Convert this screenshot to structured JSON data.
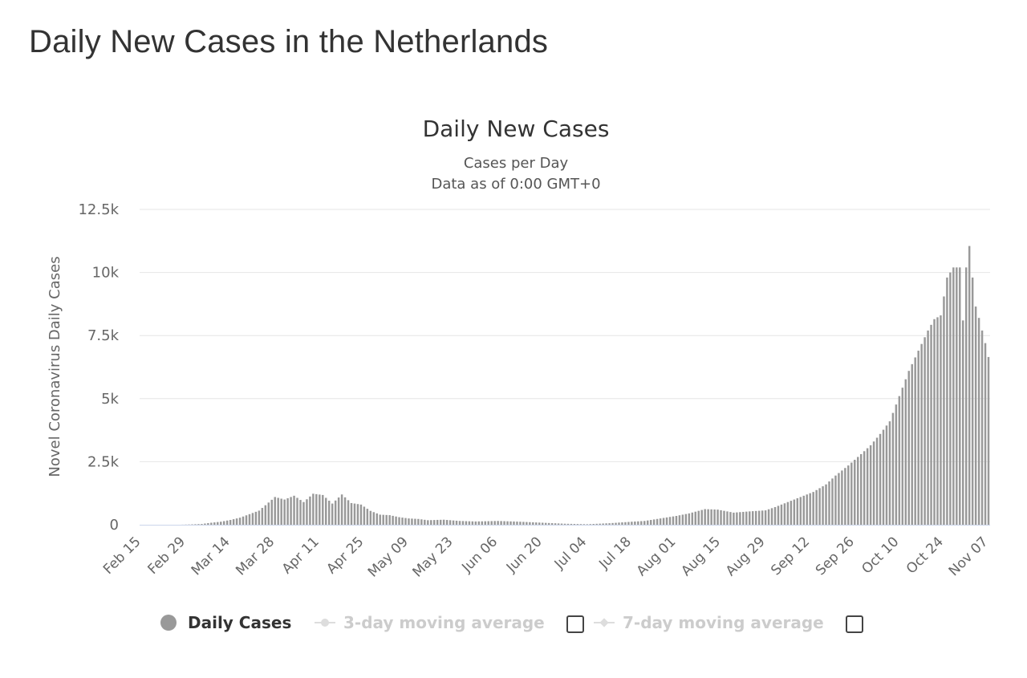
{
  "page": {
    "title": "Daily New Cases in the Netherlands"
  },
  "legend": {
    "daily_label": "Daily Cases",
    "avg3_label": "3-day moving average",
    "avg7_label": "7-day moving average",
    "avg3_checked": false,
    "avg7_checked": false
  },
  "colors": {
    "bar": "#999999",
    "grid": "#e6e6e6",
    "axis_line": "#ccd6eb",
    "axis_text": "#666666",
    "title": "#333333"
  },
  "chart_data": {
    "type": "bar",
    "title": "Daily New Cases",
    "subtitle_lines": [
      "Cases per Day",
      "Data as of 0:00 GMT+0"
    ],
    "ylabel": "Novel Coronavirus Daily Cases",
    "xlabel": "",
    "ylim": [
      0,
      12500
    ],
    "y_ticks": [
      0,
      2500,
      5000,
      7500,
      10000,
      12500
    ],
    "y_tick_labels": [
      "0",
      "2.5k",
      "5k",
      "7.5k",
      "10k",
      "12.5k"
    ],
    "x_range": [
      "Feb 15",
      "Nov 07"
    ],
    "x_ticks": [
      "Feb 15",
      "Feb 29",
      "Mar 14",
      "Mar 28",
      "Apr 11",
      "Apr 25",
      "May 09",
      "May 23",
      "Jun 06",
      "Jun 20",
      "Jul 04",
      "Jul 18",
      "Aug 01",
      "Aug 15",
      "Aug 29",
      "Sep 12",
      "Sep 26",
      "Oct 10",
      "Oct 24",
      "Nov 07"
    ],
    "grid": true,
    "legend_position": "bottom",
    "series": [
      {
        "name": "Daily Cases",
        "key_dates": [
          "Feb 15",
          "Feb 27",
          "Mar 01",
          "Mar 05",
          "Mar 08",
          "Mar 11",
          "Mar 14",
          "Mar 17",
          "Mar 20",
          "Mar 23",
          "Mar 26",
          "Mar 28",
          "Mar 31",
          "Apr 03",
          "Apr 06",
          "Apr 09",
          "Apr 12",
          "Apr 15",
          "Apr 18",
          "Apr 21",
          "Apr 24",
          "Apr 27",
          "Apr 30",
          "May 03",
          "May 06",
          "May 09",
          "May 12",
          "May 15",
          "May 20",
          "May 25",
          "May 30",
          "Jun 06",
          "Jun 13",
          "Jun 20",
          "Jun 27",
          "Jul 04",
          "Jul 11",
          "Jul 18",
          "Jul 22",
          "Jul 27",
          "Aug 01",
          "Aug 05",
          "Aug 10",
          "Aug 14",
          "Aug 19",
          "Aug 24",
          "Aug 29",
          "Sep 01",
          "Sep 05",
          "Sep 09",
          "Sep 13",
          "Sep 17",
          "Sep 20",
          "Sep 24",
          "Sep 28",
          "Oct 01",
          "Oct 04",
          "Oct 07",
          "Oct 10",
          "Oct 13",
          "Oct 16",
          "Oct 19",
          "Oct 21",
          "Oct 23",
          "Oct 25",
          "Oct 27",
          "Oct 29",
          "Oct 30",
          "Oct 31",
          "Nov 01",
          "Nov 02",
          "Nov 03",
          "Nov 04",
          "Nov 05",
          "Nov 06",
          "Nov 07"
        ],
        "key_values": [
          0,
          0,
          10,
          30,
          80,
          120,
          190,
          280,
          420,
          560,
          880,
          1100,
          1000,
          1150,
          900,
          1230,
          1180,
          840,
          1200,
          860,
          800,
          550,
          400,
          380,
          300,
          250,
          230,
          180,
          200,
          150,
          130,
          150,
          120,
          80,
          40,
          20,
          60,
          120,
          150,
          250,
          350,
          450,
          620,
          600,
          480,
          530,
          570,
          700,
          900,
          1100,
          1300,
          1600,
          1950,
          2350,
          2800,
          3150,
          3600,
          4100,
          5100,
          6100,
          6900,
          7700,
          8150,
          8300,
          9800,
          10200,
          10200,
          8100,
          10200,
          11050,
          9800,
          8650,
          8200,
          7700,
          7200,
          6650
        ]
      }
    ]
  }
}
